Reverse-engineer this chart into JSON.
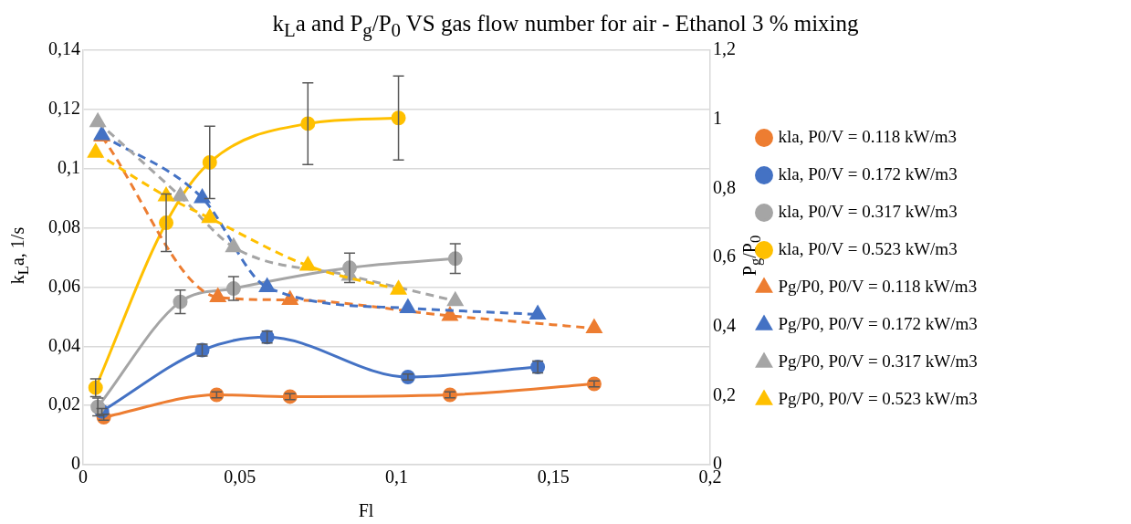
{
  "chart_data": {
    "type": "line",
    "title": "k$_{L}$a and P$_{g}$/P$_{0}$ VS gas flow number for air - Ethanol 3 % mixing",
    "xlabel": "Fl",
    "ylabel": "k$_{L}$a, 1/s",
    "y2label": "P$_{g}$/P$_{0}$",
    "xlim": [
      0,
      0.2
    ],
    "xticks": [
      0,
      {
        "value": 0.05,
        "label": "0,05"
      },
      {
        "value": 0.1,
        "label": "0,1"
      },
      {
        "value": 0.15,
        "label": "0,15"
      },
      {
        "value": 0.2,
        "label": "0,2"
      }
    ],
    "ylim": [
      0,
      0.14
    ],
    "yticks": [
      0,
      {
        "value": 0.02,
        "label": "0,02"
      },
      {
        "value": 0.04,
        "label": "0,04"
      },
      {
        "value": 0.06,
        "label": "0,06"
      },
      {
        "value": 0.08,
        "label": "0,08"
      },
      {
        "value": 0.1,
        "label": "0,1"
      },
      {
        "value": 0.12,
        "label": "0,12"
      },
      {
        "value": 0.14,
        "label": "0,14"
      }
    ],
    "y2lim": [
      0,
      1.2
    ],
    "y2ticks": [
      0,
      {
        "value": 0.2,
        "label": "0,2"
      },
      {
        "value": 0.4,
        "label": "0,4"
      },
      {
        "value": 0.6,
        "label": "0,6"
      },
      {
        "value": 0.8,
        "label": "0,8"
      },
      1,
      {
        "value": 1.2,
        "label": "1,2"
      }
    ],
    "grid": "y",
    "legend": "right",
    "series": [
      {
        "name": "kla, P0/V = 0.118 kW/m3",
        "color": "#ed7d31",
        "marker": "circle",
        "line_style": "solid",
        "x": [
          0.0066,
          0.0426,
          0.066,
          0.117,
          0.163
        ],
        "values": [
          0.016,
          0.0236,
          0.023,
          0.0236,
          0.0273
        ],
        "errors": [
          0.001,
          0.001,
          0.001,
          0.001,
          0.001
        ]
      },
      {
        "name": "kla, P0/V = 0.172 kW/m3",
        "color": "#4472c4",
        "marker": "circle",
        "line_style": "solid",
        "x": [
          0.006,
          0.038,
          0.0587,
          0.1036,
          0.145
        ],
        "values": [
          0.018,
          0.0387,
          0.0431,
          0.0296,
          0.033
        ],
        "errors": [
          0.001,
          0.002,
          0.002,
          0.001,
          0.002
        ]
      },
      {
        "name": "kla, P0/V = 0.317 kW/m3",
        "color": "#a5a5a5",
        "marker": "circle",
        "line_style": "solid",
        "x": [
          0.0047,
          0.031,
          0.048,
          0.085,
          0.1187
        ],
        "values": [
          0.0195,
          0.055,
          0.0595,
          0.0665,
          0.0696
        ],
        "errors": [
          0.003,
          0.004,
          0.004,
          0.005,
          0.005
        ]
      },
      {
        "name": "kla, P0/V = 0.523 kW/m3",
        "color": "#ffc000",
        "marker": "circle",
        "line_style": "solid",
        "x": [
          0.004,
          0.0265,
          0.0404,
          0.0717,
          0.1006
        ],
        "values": [
          0.026,
          0.0817,
          0.1021,
          0.1152,
          0.1171
        ],
        "errors": [
          0.003,
          0.0097,
          0.0122,
          0.0138,
          0.0142
        ]
      },
      {
        "name": "Pg/P0, P0/V = 0.118 kW/m3",
        "color": "#ed7d31",
        "marker": "triangle",
        "line_style": "dashed",
        "axis": "y2",
        "x": [
          0.006,
          0.043,
          0.066,
          0.117,
          0.163
        ],
        "values": [
          0.95,
          0.485,
          0.477,
          0.431,
          0.395
        ]
      },
      {
        "name": "Pg/P0, P0/V = 0.172 kW/m3",
        "color": "#4472c4",
        "marker": "triangle",
        "line_style": "dashed",
        "axis": "y2",
        "x": [
          0.006,
          0.038,
          0.0587,
          0.1036,
          0.145
        ],
        "values": [
          0.954,
          0.772,
          0.514,
          0.453,
          0.435
        ]
      },
      {
        "name": "Pg/P0, P0/V = 0.317 kW/m3",
        "color": "#a5a5a5",
        "marker": "triangle",
        "line_style": "dashed",
        "axis": "y2",
        "x": [
          0.0047,
          0.031,
          0.048,
          0.085,
          0.1187
        ],
        "values": [
          0.992,
          0.777,
          0.63,
          0.547,
          0.474
        ]
      },
      {
        "name": "Pg/P0, P0/V = 0.523 kW/m3",
        "color": "#ffc000",
        "marker": "triangle",
        "line_style": "dashed",
        "axis": "y2",
        "x": [
          0.004,
          0.0265,
          0.0404,
          0.0717,
          0.1006
        ],
        "values": [
          0.903,
          0.777,
          0.714,
          0.576,
          0.507
        ]
      }
    ]
  }
}
